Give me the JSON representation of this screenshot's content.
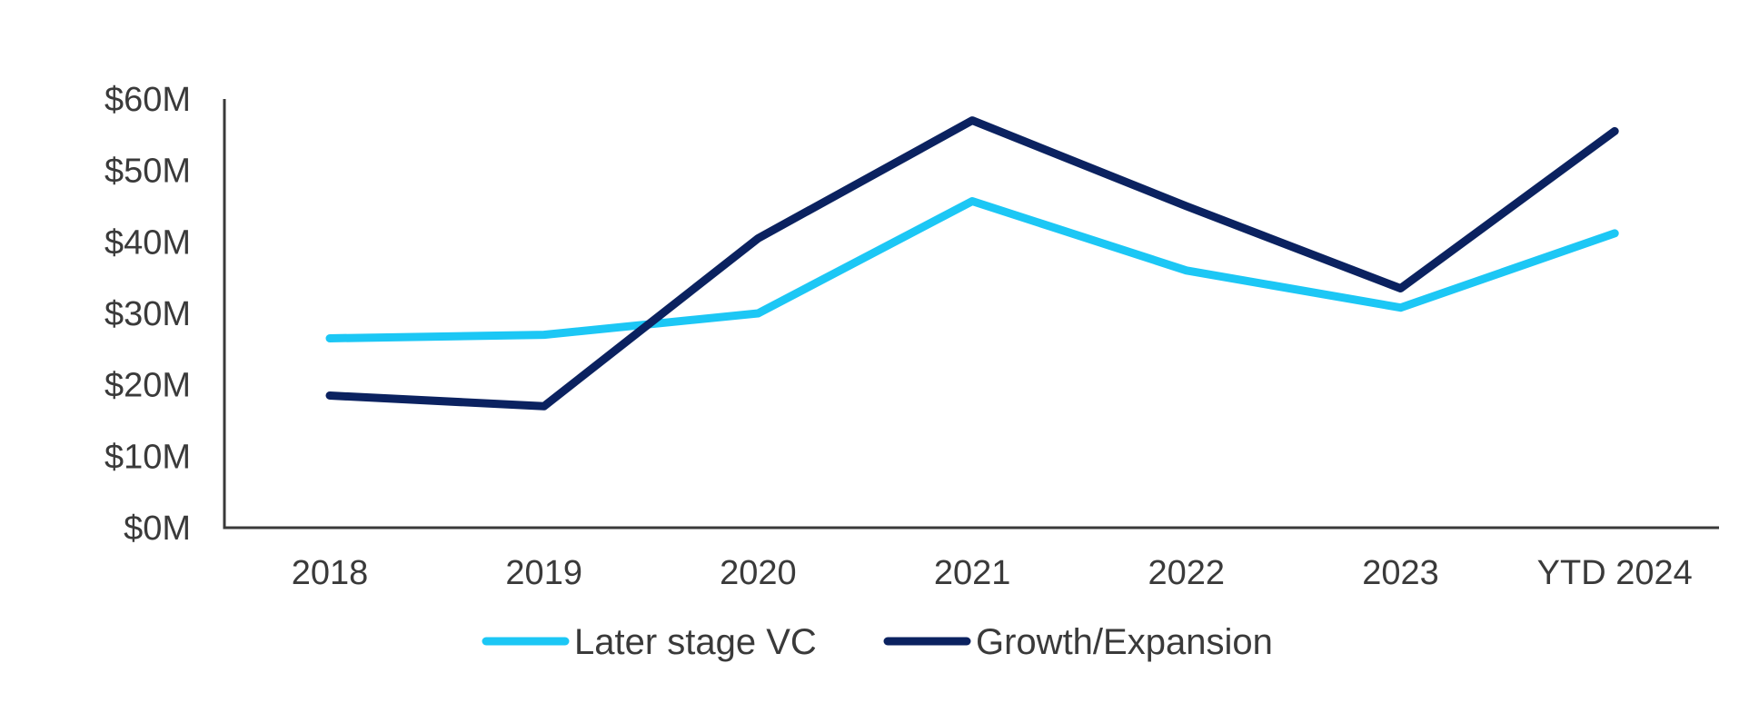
{
  "chart_data": {
    "type": "line",
    "categories": [
      "2018",
      "2019",
      "2020",
      "2021",
      "2022",
      "2023",
      "YTD 2024"
    ],
    "y_ticks": [
      "$0M",
      "$10M",
      "$20M",
      "$30M",
      "$40M",
      "$50M",
      "$60M"
    ],
    "y_tick_values": [
      0,
      10,
      20,
      30,
      40,
      50,
      60
    ],
    "ylim": [
      0,
      60
    ],
    "grid": false,
    "legend_position": "bottom",
    "series": [
      {
        "name": "Later stage VC",
        "color": "#1CC7F5",
        "values": [
          26.5,
          27.0,
          30.0,
          45.7,
          36.0,
          30.8,
          41.2
        ]
      },
      {
        "name": "Growth/Expansion",
        "color": "#0B2260",
        "values": [
          18.5,
          17.0,
          40.5,
          57.0,
          45.0,
          33.5,
          55.5
        ]
      }
    ],
    "axis_color": "#3a3a3a"
  }
}
